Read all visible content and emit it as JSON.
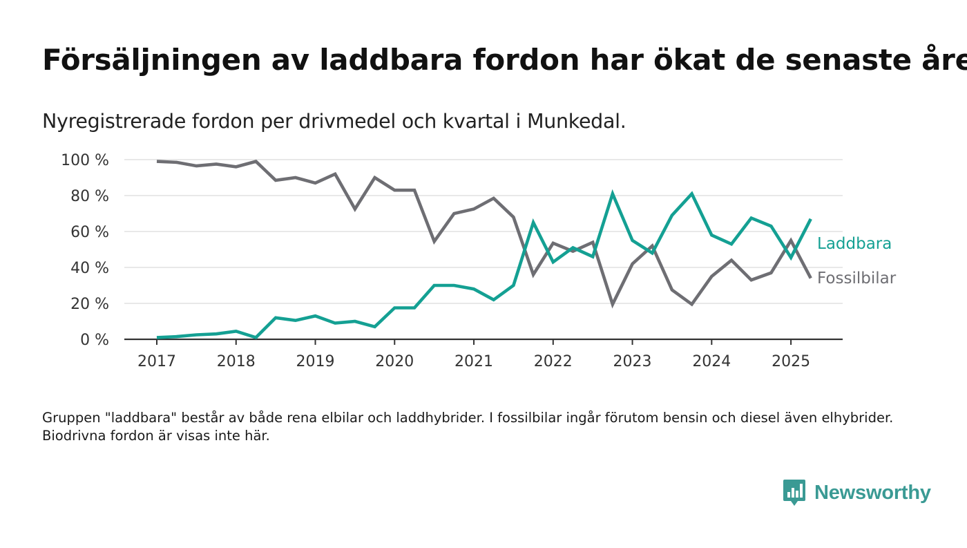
{
  "header": {
    "title": "Försäljningen av laddbara fordon har ökat de senaste åren",
    "subtitle": "Nyregistrerade fordon per drivmedel och kvartal i Munkedal."
  },
  "footnote": "Gruppen \"laddbara\" består av både rena elbilar och laddhybrider. I fossilbilar ingår förutom bensin och diesel även elhybrider. Biodrivna fordon är visas inte här.",
  "logo": {
    "text": "Newsworthy",
    "icon": "bar-chart-speech-bubble-icon"
  },
  "colors": {
    "laddbara": "#14a093",
    "fossilbilar": "#6e6e73",
    "brand": "#3a9a94",
    "grid": "#d9d9d9",
    "axis": "#333333"
  },
  "chart_data": {
    "type": "line",
    "title": "Försäljningen av laddbara fordon har ökat de senaste åren",
    "subtitle": "Nyregistrerade fordon per drivmedel och kvartal i Munkedal.",
    "xlabel": "",
    "ylabel": "",
    "x": [
      "2017 Q1",
      "2017 Q2",
      "2017 Q3",
      "2017 Q4",
      "2018 Q1",
      "2018 Q2",
      "2018 Q3",
      "2018 Q4",
      "2019 Q1",
      "2019 Q2",
      "2019 Q3",
      "2019 Q4",
      "2020 Q1",
      "2020 Q2",
      "2020 Q3",
      "2020 Q4",
      "2021 Q1",
      "2021 Q2",
      "2021 Q3",
      "2021 Q4",
      "2022 Q1",
      "2022 Q2",
      "2022 Q3",
      "2022 Q4",
      "2023 Q1",
      "2023 Q2",
      "2023 Q3",
      "2023 Q4",
      "2024 Q1",
      "2024 Q2",
      "2024 Q3",
      "2024 Q4",
      "2025 Q1",
      "2025 Q2"
    ],
    "x_ticks": [
      "2017",
      "2018",
      "2019",
      "2020",
      "2021",
      "2022",
      "2023",
      "2024",
      "2025"
    ],
    "y_ticks": [
      "0 %",
      "20 %",
      "40 %",
      "60 %",
      "80 %",
      "100 %"
    ],
    "ylim": [
      0,
      100
    ],
    "grid": true,
    "legend": "inline labels at line ends",
    "series": [
      {
        "name": "Laddbara",
        "color": "#14a093",
        "values": [
          1,
          1.5,
          2.5,
          3,
          4.5,
          1,
          12,
          10.5,
          13,
          9,
          10,
          7,
          17.5,
          17.5,
          30,
          30,
          28,
          22,
          30,
          65,
          43,
          51,
          46,
          81,
          55,
          48,
          69,
          81,
          58,
          53,
          67.5,
          63,
          45.5,
          67
        ]
      },
      {
        "name": "Fossilbilar",
        "color": "#6e6e73",
        "values": [
          99,
          98.5,
          96.5,
          97.5,
          96,
          99,
          88.5,
          90,
          87,
          92,
          72.5,
          90,
          83,
          83,
          54.5,
          70,
          72.5,
          78.5,
          68,
          36,
          53.5,
          49,
          54,
          19.5,
          42,
          52,
          27.5,
          19.5,
          35,
          44,
          33,
          37,
          55,
          34
        ]
      }
    ]
  }
}
